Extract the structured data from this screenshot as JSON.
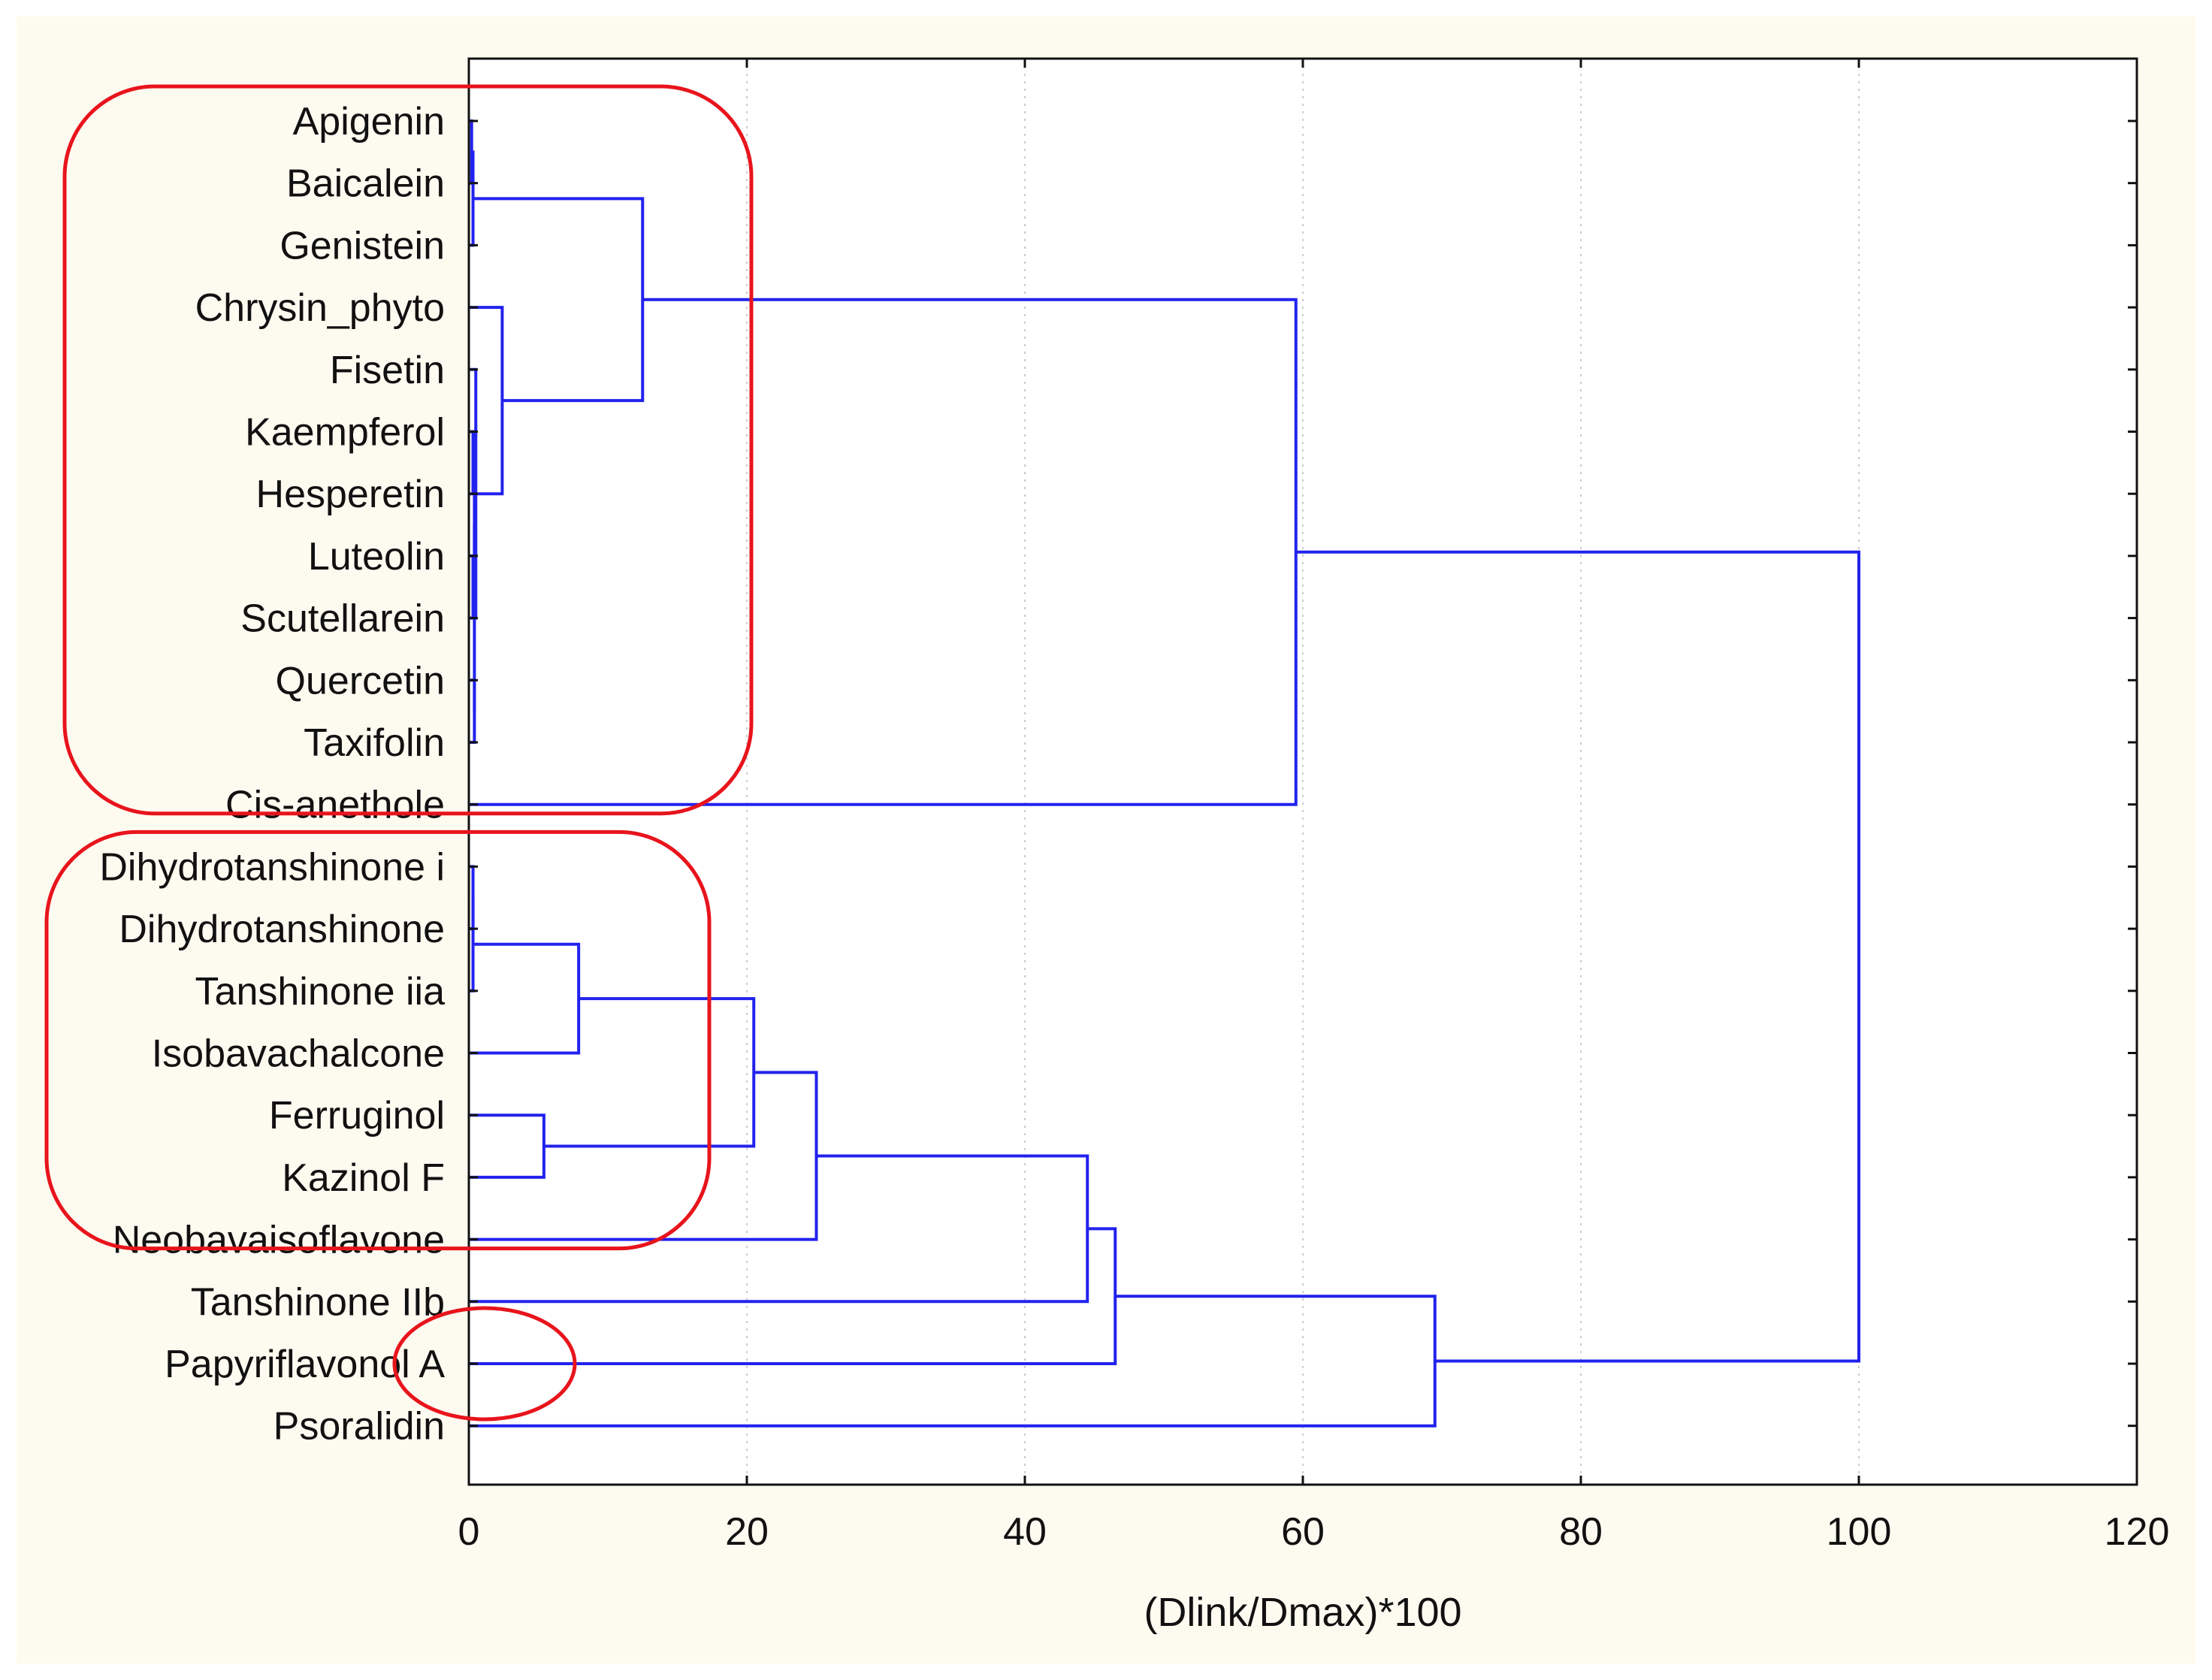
{
  "chart_data": {
    "type": "dendrogram",
    "orientation": "horizontal",
    "xlabel": "(Dlink/Dmax)*100",
    "xlim": [
      0,
      120
    ],
    "x_ticks": [
      0,
      20,
      40,
      60,
      80,
      100,
      120
    ],
    "grid": "vertical dotted",
    "leaves": [
      "Apigenin",
      "Baicalein",
      "Genistein",
      "Chrysin_phyto",
      "Fisetin",
      "Kaempferol",
      "Hesperetin",
      "Luteolin",
      "Scutellarein",
      "Quercetin",
      "Taxifolin",
      "Cis-anethole",
      "Dihydrotanshinone i",
      "Dihydrotanshinone",
      "Tanshinone iia",
      "Isobavachalcone",
      "Ferruginol",
      "Kazinol F",
      "Neobavaisoflavone",
      "Tanshinone IIb",
      "Papyriflavonol A",
      "Psoralidin"
    ],
    "merges": [
      {
        "left": "Apigenin",
        "right": "Baicalein",
        "height": 0.2
      },
      {
        "left": "Kaempferol",
        "right": "Hesperetin",
        "height": 0.3
      },
      {
        "left": "Luteolin",
        "right": "Scutellarein",
        "height": 0.3
      },
      {
        "left": "Quercetin",
        "right": "Taxifolin",
        "height": 0.4
      },
      {
        "left": "Dihydrotanshinone i",
        "right": "Dihydrotanshinone",
        "height": 0.3
      },
      {
        "left": "[Dihydrotanshinone i, Dihydrotanshinone]",
        "right": "Tanshinone iia",
        "height": 0.3
      },
      {
        "left": "[Apigenin, Baicalein]",
        "right": "Genistein",
        "height": 0.3
      },
      {
        "left": "[Kaempferol, Hesperetin]",
        "right": "[Luteolin, Scutellarein]",
        "height": 0.4
      },
      {
        "left": "[Kaempferol ... Scutellarein]",
        "right": "[Quercetin, Taxifolin]",
        "height": 0.4
      },
      {
        "left": "Fisetin",
        "right": "[Kaempferol ... Taxifolin]",
        "height": 0.5
      },
      {
        "left": "Chrysin_phyto",
        "right": "[Fisetin ... Taxifolin]",
        "height": 2.4
      },
      {
        "left": "Ferruginol",
        "right": "Kazinol F",
        "height": 5.4
      },
      {
        "left": "[Dihydrotanshinone i ... Tanshinone iia]",
        "right": "Isobavachalcone",
        "height": 7.9
      },
      {
        "left": "[Apigenin ... Genistein]",
        "right": "[Chrysin_phyto ... Taxifolin]",
        "height": 12.5
      },
      {
        "left": "[Dihydrotanshinone i ... Isobavachalcone]",
        "right": "[Ferruginol, Kazinol F]",
        "height": 20.5
      },
      {
        "left": "[Dihydrotanshinone i ... Kazinol F]",
        "right": "Neobavaisoflavone",
        "height": 25.0
      },
      {
        "left": "[Dihydrotanshinone i ... Neobavaisoflavone]",
        "right": "Tanshinone IIb",
        "height": 44.5
      },
      {
        "left": "[Dihydrotanshinone i ... Tanshinone IIb]",
        "right": "Papyriflavonol A",
        "height": 46.5
      },
      {
        "left": "[Apigenin ... Taxifolin]",
        "right": "Cis-anethole",
        "height": 59.5
      },
      {
        "left": "[Dihydrotanshinone i ... Papyriflavonol A]",
        "right": "Psoralidin",
        "height": 69.5
      },
      {
        "left": "[Apigenin ... Cis-anethole]",
        "right": "[Dihydrotanshinone i ... Psoralidin]",
        "height": 100.0
      }
    ],
    "annotations": [
      {
        "shape": "rounded-rectangle",
        "encloses": [
          "Apigenin",
          "Cis-anethole"
        ]
      },
      {
        "shape": "rounded-rectangle",
        "encloses": [
          "Dihydrotanshinone i",
          "Neobavaisoflavone"
        ]
      },
      {
        "shape": "ellipse",
        "encloses": [
          "Papyriflavonol A"
        ]
      }
    ],
    "colors": {
      "tree": "#2222ee",
      "annotation": "#e8141c",
      "axis": "#111111",
      "grid": "#cccccc",
      "background": "#fdfaf0"
    }
  }
}
